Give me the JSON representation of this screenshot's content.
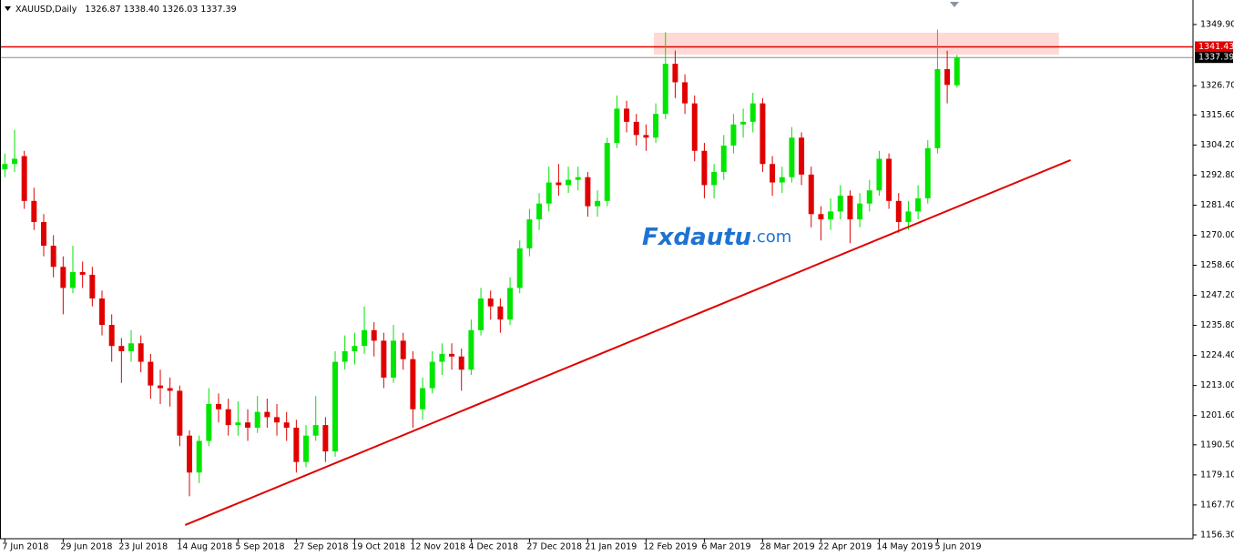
{
  "chart_data": {
    "type": "candlestick",
    "symbol": "XAUUSD,Daily",
    "header_prices": [
      "1326.87",
      "1338.40",
      "1326.03",
      "1337.39"
    ],
    "watermark": [
      "Fxdautu",
      ".com"
    ],
    "bull_color": "#00e600",
    "bear_color": "#e00000",
    "ylim": [
      1154.9,
      1359.2
    ],
    "yticks": [
      {
        "value": 1349.9,
        "label": "1349.90"
      },
      {
        "value": 1326.7,
        "label": "1326.70"
      },
      {
        "value": 1315.6,
        "label": "1315.60"
      },
      {
        "value": 1304.2,
        "label": "1304.20"
      },
      {
        "value": 1292.8,
        "label": "1292.80"
      },
      {
        "value": 1281.4,
        "label": "1281.40"
      },
      {
        "value": 1270,
        "label": "1270.00"
      },
      {
        "value": 1258.6,
        "label": "1258.60"
      },
      {
        "value": 1247.2,
        "label": "1247.20"
      },
      {
        "value": 1235.8,
        "label": "1235.80"
      },
      {
        "value": 1224.4,
        "label": "1224.40"
      },
      {
        "value": 1213,
        "label": "1213.00"
      },
      {
        "value": 1201.6,
        "label": "1201.60"
      },
      {
        "value": 1190.5,
        "label": "1190.50"
      },
      {
        "value": 1179.1,
        "label": "1179.10"
      },
      {
        "value": 1167.7,
        "label": "1167.70"
      },
      {
        "value": 1156.3,
        "label": "1156.30"
      }
    ],
    "xlim": [
      -0.5,
      122.3
    ],
    "xticks": [
      {
        "value": 0,
        "label": "7 Jun 2018"
      },
      {
        "value": 6,
        "label": "29 Jun 2018"
      },
      {
        "value": 12,
        "label": "23 Jul 2018"
      },
      {
        "value": 18,
        "label": "14 Aug 2018"
      },
      {
        "value": 24,
        "label": "5 Sep 2018"
      },
      {
        "value": 30,
        "label": "27 Sep 2018"
      },
      {
        "value": 36,
        "label": "19 Oct 2018"
      },
      {
        "value": 42,
        "label": "12 Nov 2018"
      },
      {
        "value": 48,
        "label": "4 Dec 2018"
      },
      {
        "value": 54,
        "label": "27 Dec 2018"
      },
      {
        "value": 60,
        "label": "21 Jan 2019"
      },
      {
        "value": 66,
        "label": "12 Feb 2019"
      },
      {
        "value": 72,
        "label": "6 Mar 2019"
      },
      {
        "value": 78,
        "label": "28 Mar 2019"
      },
      {
        "value": 84,
        "label": "22 Apr 2019"
      },
      {
        "value": 90,
        "label": "14 May 2019"
      },
      {
        "value": 96,
        "label": "5 Jun 2019"
      }
    ],
    "ohlc": [
      [
        1295,
        1301,
        1292,
        1297
      ],
      [
        1297,
        1310,
        1294,
        1299
      ],
      [
        1300,
        1302,
        1280,
        1283
      ],
      [
        1283,
        1288,
        1272,
        1275
      ],
      [
        1275,
        1278,
        1262,
        1266
      ],
      [
        1266,
        1270,
        1254,
        1258
      ],
      [
        1258,
        1262,
        1240,
        1250
      ],
      [
        1250,
        1266,
        1248,
        1256
      ],
      [
        1256,
        1260,
        1250,
        1255
      ],
      [
        1255,
        1258,
        1243,
        1246
      ],
      [
        1246,
        1249,
        1232,
        1236
      ],
      [
        1236,
        1240,
        1222,
        1228
      ],
      [
        1228,
        1231,
        1214,
        1226
      ],
      [
        1226,
        1234,
        1222,
        1229
      ],
      [
        1229,
        1232,
        1218,
        1222
      ],
      [
        1222,
        1225,
        1208,
        1213
      ],
      [
        1213,
        1219,
        1206,
        1212
      ],
      [
        1212,
        1216,
        1205,
        1211
      ],
      [
        1211,
        1213,
        1190,
        1194
      ],
      [
        1194,
        1196,
        1171,
        1180
      ],
      [
        1180,
        1194,
        1176,
        1192
      ],
      [
        1192,
        1212,
        1190,
        1206
      ],
      [
        1206,
        1210,
        1199,
        1204
      ],
      [
        1204,
        1208,
        1194,
        1198
      ],
      [
        1198,
        1207,
        1194,
        1199
      ],
      [
        1199,
        1204,
        1192,
        1197
      ],
      [
        1197,
        1209,
        1195,
        1203
      ],
      [
        1203,
        1208,
        1197,
        1201
      ],
      [
        1201,
        1206,
        1194,
        1199
      ],
      [
        1199,
        1203,
        1192,
        1197
      ],
      [
        1197,
        1200,
        1180,
        1184
      ],
      [
        1184,
        1198,
        1182,
        1194
      ],
      [
        1194,
        1209,
        1192,
        1198
      ],
      [
        1198,
        1201,
        1184,
        1188
      ],
      [
        1188,
        1226,
        1186,
        1222
      ],
      [
        1222,
        1232,
        1219,
        1226
      ],
      [
        1226,
        1233,
        1221,
        1228
      ],
      [
        1228,
        1243,
        1225,
        1234
      ],
      [
        1234,
        1237,
        1224,
        1230
      ],
      [
        1230,
        1233,
        1212,
        1216
      ],
      [
        1216,
        1236,
        1214,
        1230
      ],
      [
        1230,
        1233,
        1219,
        1223
      ],
      [
        1223,
        1226,
        1197,
        1204
      ],
      [
        1204,
        1216,
        1200,
        1212
      ],
      [
        1212,
        1226,
        1210,
        1222
      ],
      [
        1222,
        1229,
        1217,
        1225
      ],
      [
        1225,
        1229,
        1219,
        1224
      ],
      [
        1224,
        1227,
        1211,
        1219
      ],
      [
        1219,
        1238,
        1217,
        1234
      ],
      [
        1234,
        1250,
        1232,
        1246
      ],
      [
        1246,
        1249,
        1238,
        1243
      ],
      [
        1243,
        1246,
        1233,
        1238
      ],
      [
        1238,
        1254,
        1236,
        1250
      ],
      [
        1250,
        1268,
        1248,
        1265
      ],
      [
        1265,
        1280,
        1262,
        1276
      ],
      [
        1276,
        1286,
        1272,
        1282
      ],
      [
        1282,
        1296,
        1279,
        1290
      ],
      [
        1290,
        1297,
        1285,
        1289
      ],
      [
        1289,
        1296,
        1286,
        1291
      ],
      [
        1291,
        1296,
        1287,
        1292
      ],
      [
        1292,
        1294,
        1277,
        1281
      ],
      [
        1281,
        1287,
        1277,
        1283
      ],
      [
        1283,
        1307,
        1281,
        1305
      ],
      [
        1305,
        1323,
        1303,
        1318
      ],
      [
        1318,
        1321,
        1309,
        1313
      ],
      [
        1313,
        1316,
        1304,
        1308
      ],
      [
        1308,
        1312,
        1302,
        1307
      ],
      [
        1307,
        1320,
        1305,
        1316
      ],
      [
        1316,
        1347,
        1314,
        1335
      ],
      [
        1335,
        1340,
        1322,
        1328
      ],
      [
        1328,
        1331,
        1316,
        1320
      ],
      [
        1320,
        1323,
        1298,
        1302
      ],
      [
        1302,
        1305,
        1284,
        1289
      ],
      [
        1289,
        1297,
        1284,
        1294
      ],
      [
        1294,
        1308,
        1291,
        1304
      ],
      [
        1304,
        1316,
        1301,
        1312
      ],
      [
        1312,
        1318,
        1307,
        1313
      ],
      [
        1313,
        1324,
        1309,
        1320
      ],
      [
        1320,
        1322,
        1294,
        1297
      ],
      [
        1297,
        1300,
        1285,
        1290
      ],
      [
        1290,
        1296,
        1286,
        1292
      ],
      [
        1292,
        1311,
        1290,
        1307
      ],
      [
        1307,
        1309,
        1289,
        1293
      ],
      [
        1293,
        1296,
        1273,
        1278
      ],
      [
        1278,
        1281,
        1268,
        1276
      ],
      [
        1276,
        1284,
        1272,
        1279
      ],
      [
        1279,
        1289,
        1276,
        1285
      ],
      [
        1285,
        1287,
        1267,
        1276
      ],
      [
        1276,
        1286,
        1273,
        1282
      ],
      [
        1282,
        1291,
        1279,
        1287
      ],
      [
        1287,
        1302,
        1285,
        1299
      ],
      [
        1299,
        1301,
        1280,
        1283
      ],
      [
        1283,
        1286,
        1271,
        1275
      ],
      [
        1275,
        1283,
        1272,
        1279
      ],
      [
        1279,
        1289,
        1276,
        1284
      ],
      [
        1284,
        1306,
        1282,
        1303
      ],
      [
        1303,
        1348,
        1301,
        1333
      ],
      [
        1333,
        1340,
        1320,
        1327
      ],
      [
        1326.87,
        1338.4,
        1326.03,
        1337.39
      ]
    ],
    "trendline": {
      "from": [
        18.56,
        1160.1
      ],
      "to": [
        109.7,
        1298.5
      ],
      "color": "#e00000"
    },
    "zone": {
      "x": [
        66.8,
        108.5
      ],
      "y": [
        1338.5,
        1346.8
      ],
      "color": "#ffd9d6"
    },
    "levels": [
      {
        "value": 1341.43,
        "color": "#e00000"
      },
      {
        "value": 1337.39,
        "color": "#8c8c8c"
      }
    ]
  }
}
